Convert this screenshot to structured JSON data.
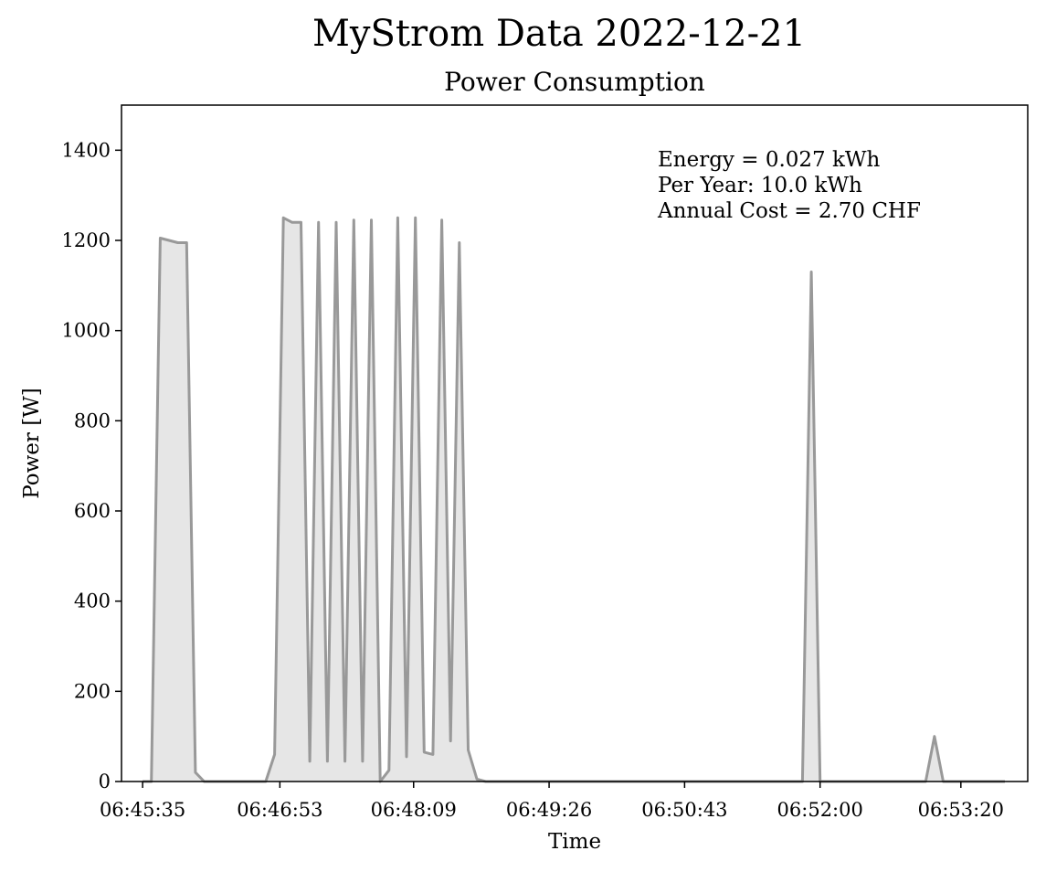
{
  "page_title": "MyStrom Data 2022-12-21",
  "chart_data": {
    "type": "area",
    "title": "Power Consumption",
    "xlabel": "Time",
    "ylabel": "Power [W]",
    "ylim": [
      0,
      1500
    ],
    "yticks": [
      0,
      200,
      400,
      600,
      800,
      1000,
      1200,
      1400
    ],
    "xlim": [
      "06:45:23",
      "06:53:58"
    ],
    "xticks": [
      "06:45:35",
      "06:46:53",
      "06:48:09",
      "06:49:26",
      "06:50:43",
      "06:52:00",
      "06:53:20"
    ],
    "grid": false,
    "line_color": "#999999",
    "fill_color": "#e6e6e6",
    "x": [
      "06:45:35",
      "06:45:40",
      "06:45:45",
      "06:45:50",
      "06:45:55",
      "06:46:00",
      "06:46:05",
      "06:46:10",
      "06:46:15",
      "06:46:45",
      "06:46:50",
      "06:46:55",
      "06:47:00",
      "06:47:05",
      "06:47:10",
      "06:47:15",
      "06:47:20",
      "06:47:25",
      "06:47:30",
      "06:47:35",
      "06:47:40",
      "06:47:45",
      "06:47:50",
      "06:47:55",
      "06:48:00",
      "06:48:05",
      "06:48:10",
      "06:48:15",
      "06:48:20",
      "06:48:25",
      "06:48:30",
      "06:48:35",
      "06:48:40",
      "06:48:45",
      "06:48:50",
      "06:48:55",
      "06:49:00",
      "06:49:05",
      "06:51:50",
      "06:51:55",
      "06:52:00",
      "06:53:00",
      "06:53:05",
      "06:53:10",
      "06:53:45"
    ],
    "y": [
      0,
      0,
      1205,
      1200,
      1195,
      1195,
      20,
      0,
      0,
      0,
      60,
      1250,
      1240,
      1240,
      45,
      1240,
      45,
      1240,
      45,
      1245,
      45,
      1245,
      0,
      25,
      1250,
      55,
      1250,
      65,
      60,
      1245,
      90,
      1195,
      70,
      5,
      0,
      0,
      0,
      0,
      0,
      1130,
      0,
      0,
      100,
      0,
      0
    ],
    "annotations": [
      "Energy = 0.027 kWh",
      "Per Year: 10.0 kWh",
      "Annual Cost = 2.70 CHF"
    ]
  }
}
